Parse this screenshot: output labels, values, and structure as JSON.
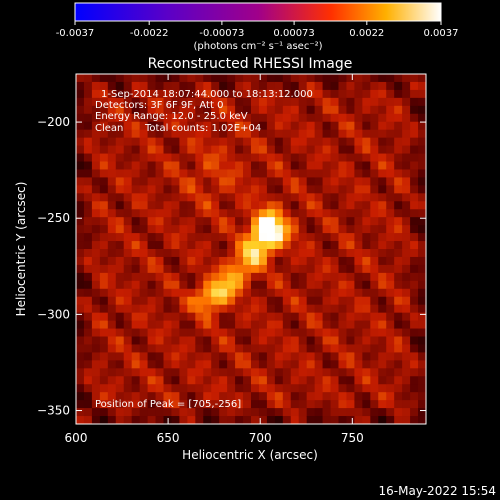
{
  "chart_data": {
    "type": "heatmap",
    "title": "Reconstructed RHESSI Image",
    "xlabel": "Heliocentric X (arcsec)",
    "ylabel": "Heliocentric Y (arcsec)",
    "xlim": [
      600,
      790
    ],
    "ylim": [
      -357,
      -175
    ],
    "x_ticks": [
      "600",
      "650",
      "700",
      "750"
    ],
    "y_ticks": [
      "-200",
      "-250",
      "-300",
      "-350"
    ],
    "colorbar": {
      "ticks": [
        "-0.0037",
        "-0.0022",
        "-0.00073",
        "0.00073",
        "0.0022",
        "0.0037"
      ],
      "label": "(photons cm⁻² s⁻¹ asec⁻²)",
      "range": [
        -0.0037,
        0.0037
      ]
    },
    "annotations": {
      "time": "1-Sep-2014 18:07:44.000 to 18:13:12.000",
      "detectors": "Detectors: 3F 6F 9F, Att 0",
      "energy": "Energy Range: 12.0 - 25.0 keV",
      "clean": "Clean",
      "counts": "Total counts: 1.02E+04",
      "peak": "Position of Peak = [705,-256]"
    },
    "peak": {
      "x": 705,
      "y": -256
    },
    "timestamp": "16-May-2022 15:54"
  }
}
